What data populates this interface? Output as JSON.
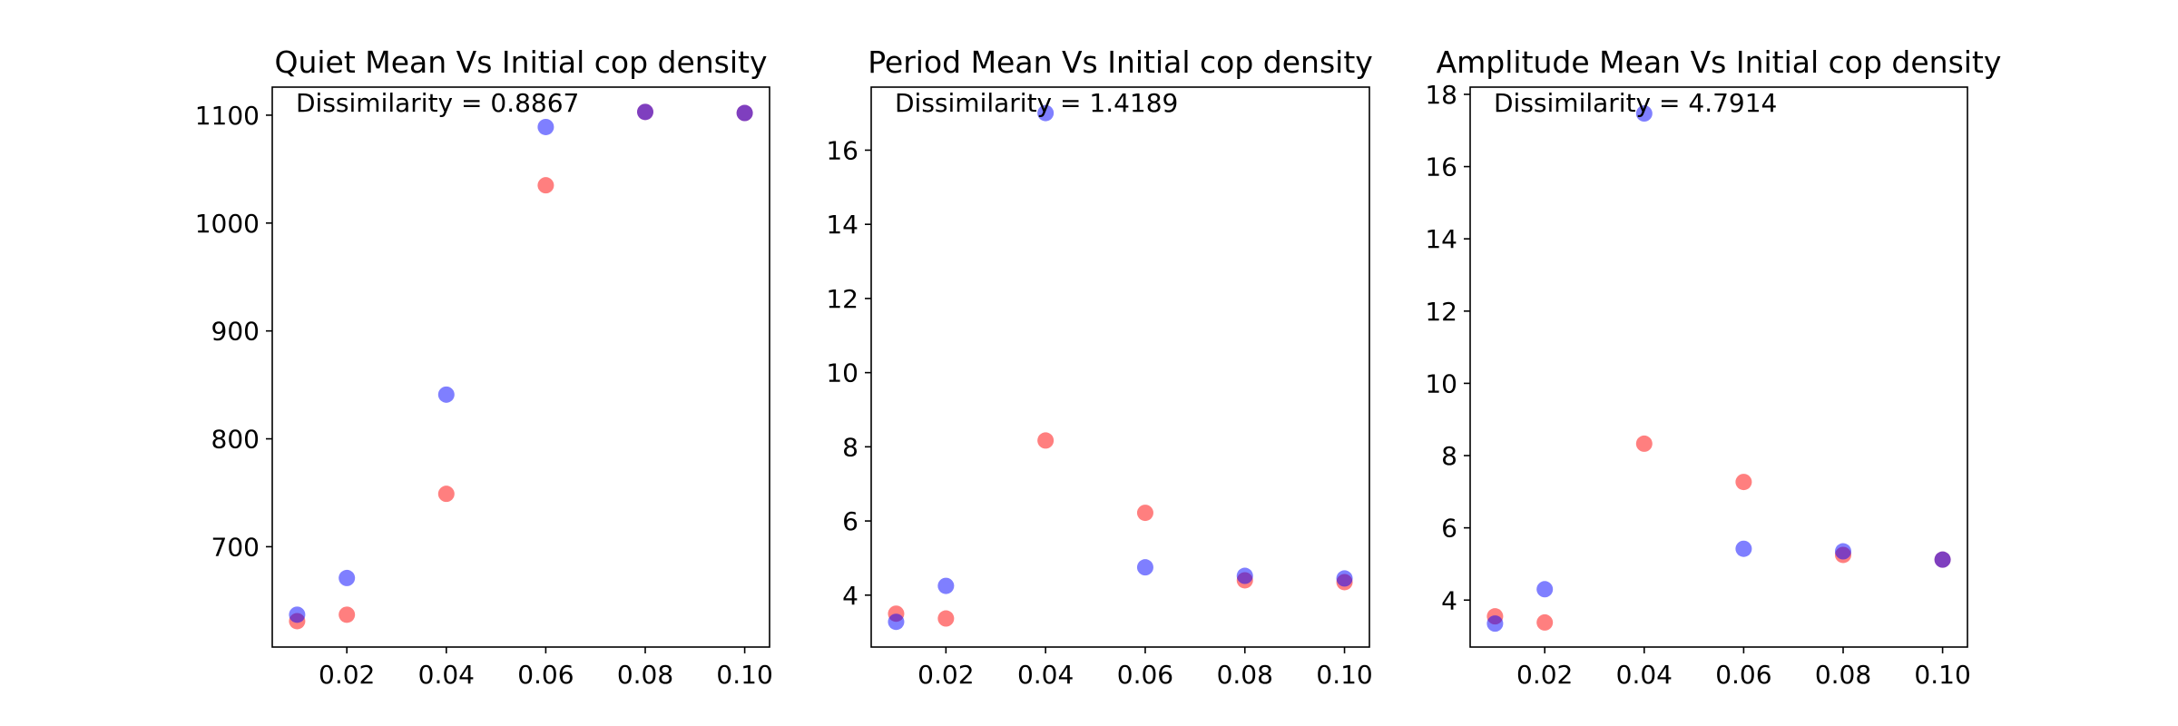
{
  "colors": {
    "red": "#ff0000",
    "blue": "#0000ff"
  },
  "chart_data": [
    {
      "type": "scatter",
      "title": "Quiet Mean Vs Initial cop density",
      "annotation": "Dissimilarity = 0.8867",
      "xlim": [
        0.005,
        0.105
      ],
      "ylim": [
        607,
        1126
      ],
      "xticks": [
        0.02,
        0.04,
        0.06,
        0.08,
        0.1
      ],
      "xtick_labels": [
        "0.02",
        "0.04",
        "0.06",
        "0.08",
        "0.10"
      ],
      "yticks": [
        700,
        800,
        900,
        1000,
        1100
      ],
      "ytick_labels": [
        "700",
        "800",
        "900",
        "1000",
        "1100"
      ],
      "grid": false,
      "series": [
        {
          "color": "red",
          "points": [
            [
              0.01,
              631
            ],
            [
              0.02,
              637
            ],
            [
              0.04,
              749
            ],
            [
              0.06,
              1035
            ],
            [
              0.08,
              1103
            ],
            [
              0.1,
              1102
            ]
          ]
        },
        {
          "color": "blue",
          "points": [
            [
              0.01,
              637
            ],
            [
              0.02,
              671
            ],
            [
              0.04,
              841
            ],
            [
              0.06,
              1089
            ],
            [
              0.08,
              1103
            ],
            [
              0.1,
              1102
            ]
          ]
        }
      ]
    },
    {
      "type": "scatter",
      "title": "Period Mean Vs Initial cop density",
      "annotation": "Dissimilarity = 1.4189",
      "xlim": [
        0.005,
        0.105
      ],
      "ylim": [
        2.6,
        17.7
      ],
      "xticks": [
        0.02,
        0.04,
        0.06,
        0.08,
        0.1
      ],
      "xtick_labels": [
        "0.02",
        "0.04",
        "0.06",
        "0.08",
        "0.10"
      ],
      "yticks": [
        4,
        6,
        8,
        10,
        12,
        14,
        16
      ],
      "ytick_labels": [
        "4",
        "6",
        "8",
        "10",
        "12",
        "14",
        "16"
      ],
      "grid": false,
      "series": [
        {
          "color": "red",
          "points": [
            [
              0.01,
              3.5
            ],
            [
              0.02,
              3.37
            ],
            [
              0.04,
              8.17
            ],
            [
              0.06,
              6.22
            ],
            [
              0.08,
              4.4
            ],
            [
              0.1,
              4.35
            ]
          ]
        },
        {
          "color": "blue",
          "points": [
            [
              0.01,
              3.28
            ],
            [
              0.02,
              4.25
            ],
            [
              0.04,
              17.0
            ],
            [
              0.06,
              4.75
            ],
            [
              0.08,
              4.52
            ],
            [
              0.1,
              4.45
            ]
          ]
        }
      ]
    },
    {
      "type": "scatter",
      "title": "Amplitude Mean Vs Initial cop density",
      "annotation": "Dissimilarity = 4.7914",
      "xlim": [
        0.005,
        0.105
      ],
      "ylim": [
        2.7,
        18.2
      ],
      "xticks": [
        0.02,
        0.04,
        0.06,
        0.08,
        0.1
      ],
      "xtick_labels": [
        "0.02",
        "0.04",
        "0.06",
        "0.08",
        "0.10"
      ],
      "yticks": [
        4,
        6,
        8,
        10,
        12,
        14,
        16,
        18
      ],
      "ytick_labels": [
        "4",
        "6",
        "8",
        "10",
        "12",
        "14",
        "16",
        "18"
      ],
      "grid": false,
      "series": [
        {
          "color": "red",
          "points": [
            [
              0.01,
              3.55
            ],
            [
              0.02,
              3.38
            ],
            [
              0.04,
              8.33
            ],
            [
              0.06,
              7.27
            ],
            [
              0.08,
              5.25
            ],
            [
              0.1,
              5.12
            ]
          ]
        },
        {
          "color": "blue",
          "points": [
            [
              0.01,
              3.35
            ],
            [
              0.02,
              4.3
            ],
            [
              0.04,
              17.47
            ],
            [
              0.06,
              5.42
            ],
            [
              0.08,
              5.35
            ],
            [
              0.1,
              5.12
            ]
          ]
        }
      ]
    }
  ]
}
